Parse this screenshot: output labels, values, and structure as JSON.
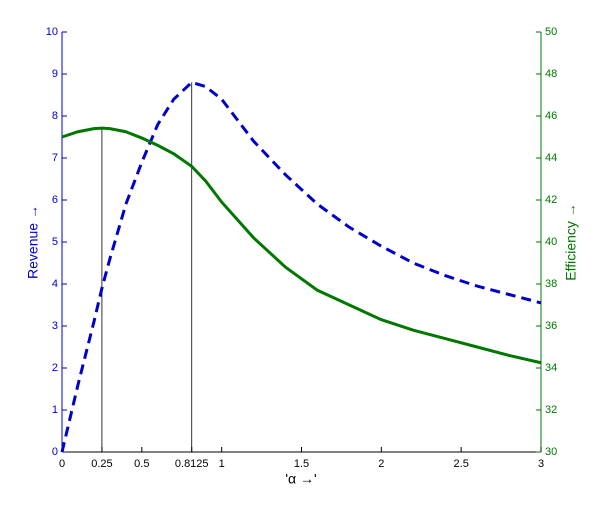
{
  "chart_data": {
    "type": "line",
    "x": [
      0,
      0.1,
      0.2,
      0.25,
      0.3,
      0.4,
      0.5,
      0.6,
      0.7,
      0.8125,
      0.9,
      1,
      1.2,
      1.4,
      1.6,
      1.8,
      2,
      2.2,
      2.4,
      2.6,
      2.8,
      3
    ],
    "series": [
      {
        "name": "Revenue",
        "color": "#0000cc",
        "dash": true,
        "axis": "y",
        "values": [
          0,
          1.6,
          3.1,
          3.9,
          4.6,
          5.9,
          6.9,
          7.8,
          8.4,
          8.8,
          8.7,
          8.4,
          7.4,
          6.6,
          5.9,
          5.35,
          4.9,
          4.5,
          4.2,
          3.95,
          3.75,
          3.55
        ]
      },
      {
        "name": "Efficiency",
        "color": "#007700",
        "dash": false,
        "axis": "y2",
        "values": [
          45.0,
          45.25,
          45.4,
          45.42,
          45.4,
          45.25,
          44.95,
          44.6,
          44.2,
          43.6,
          42.9,
          41.9,
          40.2,
          38.8,
          37.7,
          37.0,
          36.3,
          35.8,
          35.4,
          35.0,
          34.6,
          34.25
        ]
      }
    ],
    "xlabel": "'α →'",
    "ylabel": "Revenue →",
    "y2label": "Efficiency →",
    "xlim": [
      0,
      3
    ],
    "xticks": [
      0,
      0.25,
      0.5,
      0.8125,
      1,
      1.5,
      2,
      2.5,
      3
    ],
    "ylim": [
      0,
      10
    ],
    "yticks": [
      0,
      1,
      2,
      3,
      4,
      5,
      6,
      7,
      8,
      9,
      10
    ],
    "y2lim": [
      30,
      50
    ],
    "y2ticks": [
      30,
      32,
      34,
      36,
      38,
      40,
      42,
      44,
      46,
      48,
      50
    ],
    "vlines": [
      0.25,
      0.8125
    ]
  }
}
